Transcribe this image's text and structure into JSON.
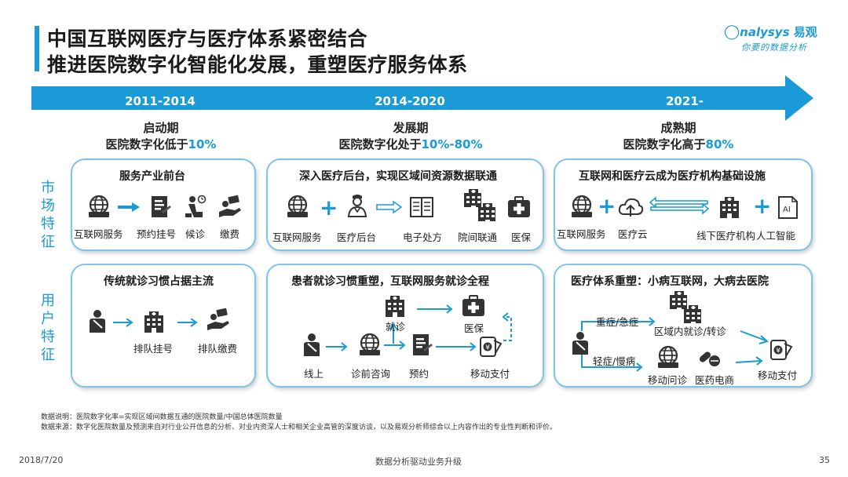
{
  "header": {
    "title_line1": "中国互联网医疗与医疗体系紧密结合",
    "title_line2": "推进医院数字化智能化发展，重塑医疗服务体系",
    "logo_brand": "nalysys",
    "logo_cn": "易观",
    "logo_tagline": "你要的数据分析"
  },
  "timeline": {
    "periods": [
      "2011-2014",
      "2014-2020",
      "2021-"
    ],
    "arrow_color": "#1a9ad6"
  },
  "phases": [
    {
      "name": "启动期",
      "desc": "医院数字化低于",
      "value": "10%"
    },
    {
      "name": "发展期",
      "desc": "医院数字化处于",
      "value": "10%-80%"
    },
    {
      "name": "成熟期",
      "desc": "医院数字化高于",
      "value": "80%"
    }
  ],
  "side_labels": {
    "market": "市场特征",
    "user": "用户特征"
  },
  "market": [
    {
      "title": "服务产业前台",
      "items": [
        "互联网服务",
        "预约挂号",
        "候诊",
        "缴费"
      ]
    },
    {
      "title": "深入医疗后台，实现区域间资源数据联通",
      "items": [
        "互联网服务",
        "医疗后台",
        "电子处方",
        "院间联通",
        "医保"
      ]
    },
    {
      "title": "互联网和医疗云成为医疗机构基础设施",
      "items": [
        "互联网服务",
        "医疗云",
        "线下医疗机构",
        "人工智能"
      ]
    }
  ],
  "user": [
    {
      "title": "传统就诊习惯占据主流",
      "items": [
        "排队挂号",
        "排队缴费"
      ]
    },
    {
      "title": "患者就诊习惯重塑，互联网服务就诊全程",
      "items": [
        "就诊",
        "医保",
        "线上",
        "诊前咨询",
        "预约",
        "移动支付"
      ]
    },
    {
      "title": "医疗体系重塑：小病互联网，大病去医院",
      "items": [
        "重症/急症",
        "区域内就诊/转诊",
        "轻症/慢病",
        "移动问诊",
        "医药电商",
        "移动支付"
      ]
    }
  ],
  "footnotes": {
    "note": "数据说明：医院数字化率=实现区域间数据互通的医院数量/中国总体医院数量",
    "source": "数据来源：数字化医院数量及预测来自对行业公开信息的分析、对业内资深人士和相关企业高管的深度访谈，以及易观分析师综合以上内容作出的专业性判断和评价。"
  },
  "bottom": {
    "date": "2018/7/20",
    "center": "数据分析驱动业务升级",
    "page": "35"
  },
  "colors": {
    "accent": "#1a9ad6",
    "card_border": "#7ec3e8",
    "icon": "#333333"
  }
}
